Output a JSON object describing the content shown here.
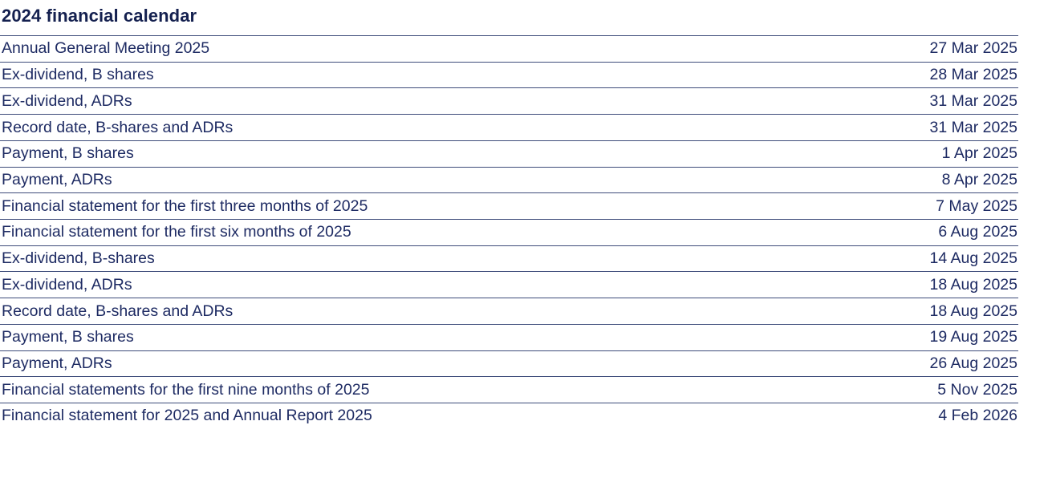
{
  "title": "2024 financial calendar",
  "table": {
    "rows": [
      {
        "event": "Annual General Meeting 2025",
        "date": "27 Mar 2025"
      },
      {
        "event": "Ex-dividend, B shares",
        "date": "28 Mar 2025"
      },
      {
        "event": "Ex-dividend, ADRs",
        "date": "31 Mar 2025"
      },
      {
        "event": "Record date, B-shares and ADRs",
        "date": "31 Mar 2025"
      },
      {
        "event": "Payment, B shares",
        "date": "1 Apr 2025"
      },
      {
        "event": "Payment, ADRs",
        "date": "8 Apr 2025"
      },
      {
        "event": "Financial statement for the first three months of 2025",
        "date": "7 May 2025"
      },
      {
        "event": "Financial statement for the first six months of 2025",
        "date": "6 Aug 2025"
      },
      {
        "event": "Ex-dividend, B-shares",
        "date": "14 Aug 2025"
      },
      {
        "event": "Ex-dividend, ADRs",
        "date": "18 Aug 2025"
      },
      {
        "event": "Record date, B-shares and ADRs",
        "date": "18 Aug 2025"
      },
      {
        "event": "Payment, B shares",
        "date": "19 Aug 2025"
      },
      {
        "event": "Payment, ADRs",
        "date": "26 Aug 2025"
      },
      {
        "event": "Financial statements for the first nine months of 2025",
        "date": "5 Nov 2025"
      },
      {
        "event": "Financial statement for 2025 and Annual Report 2025",
        "date": "4 Feb 2026"
      }
    ]
  },
  "colors": {
    "background": "#ffffff",
    "title_text": "#14204f",
    "body_text": "#1e2b63",
    "row_line": "#3e4c7a"
  }
}
